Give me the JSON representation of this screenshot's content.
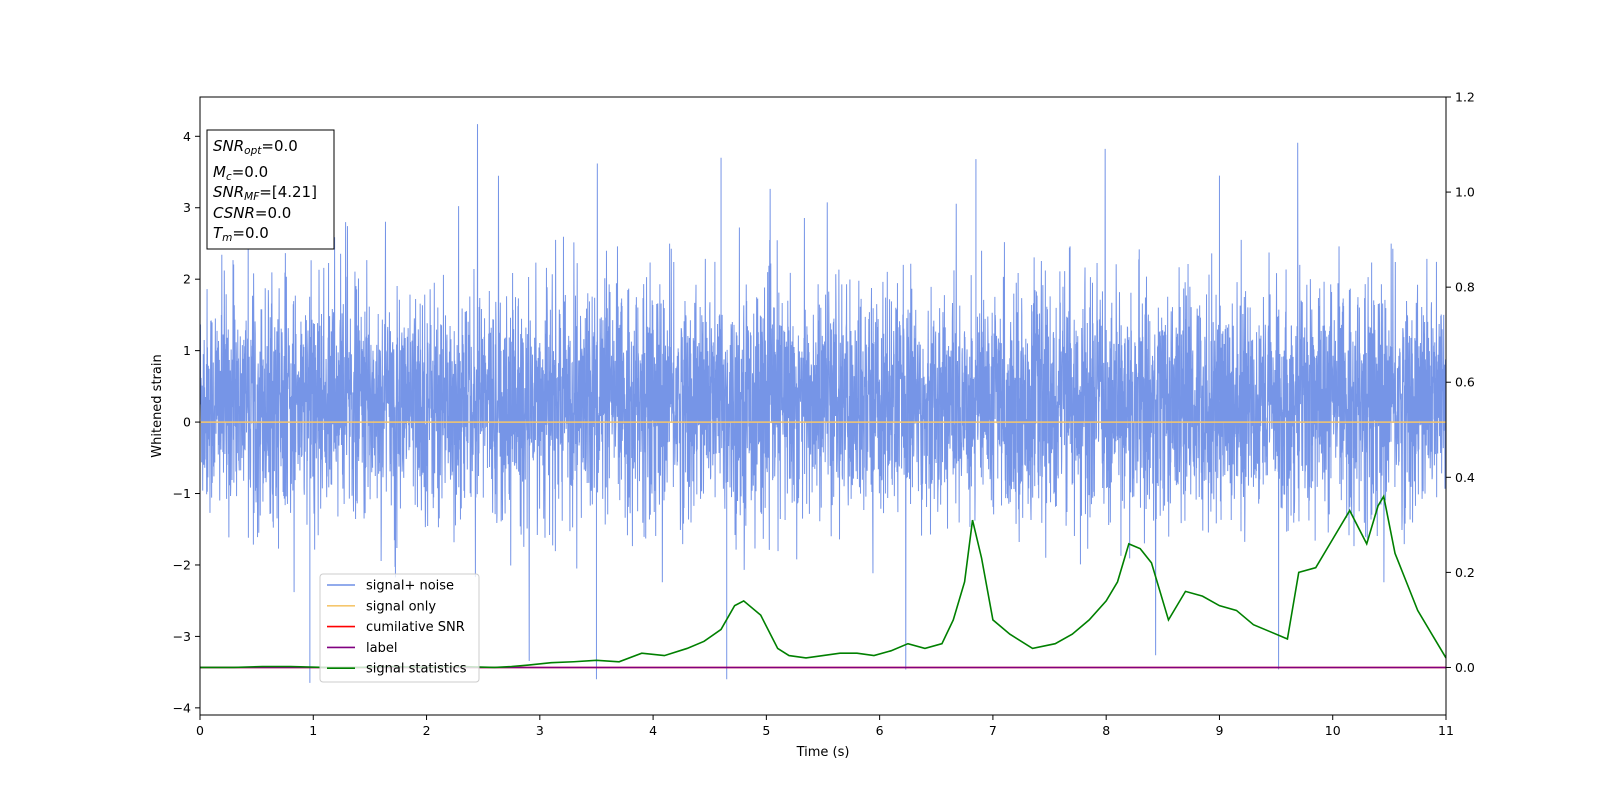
{
  "chart_data": {
    "type": "line",
    "xlabel": "Time (s)",
    "ylabel": "Whitened strain",
    "xlim": [
      0,
      11
    ],
    "ylim": [
      -4.1,
      4.55
    ],
    "y2lim": [
      -0.1,
      1.2
    ],
    "x_ticks": [
      0,
      1,
      2,
      3,
      4,
      5,
      6,
      7,
      8,
      9,
      10,
      11
    ],
    "y_ticks": [
      -4,
      -3,
      -2,
      -1,
      0,
      1,
      2,
      3,
      4
    ],
    "y2_ticks": [
      0.0,
      0.2,
      0.4,
      0.6,
      0.8,
      1.0,
      1.2
    ],
    "legend_position": "lower-left",
    "grid": false,
    "info_box": [
      {
        "name": "SNR",
        "sub": "opt",
        "value": "=0.0"
      },
      {
        "name": "M",
        "sub": "c",
        "value": "=0.0"
      },
      {
        "name": "SNR",
        "sub": "MF",
        "value": "=[4.21]"
      },
      {
        "name": "CSNR",
        "sub": "",
        "value": "=0.0"
      },
      {
        "name": "T",
        "sub": "m",
        "value": "=0.0"
      }
    ],
    "series": [
      {
        "name": "signal+ noise",
        "color": "#6f8fe6",
        "axis": "left",
        "style": "dense noise band, roughly -1.7 to 2.3 with spikes reaching about 4.17 (near t=2.45) and about -3.65 (near t=0.97)"
      },
      {
        "name": "signal only",
        "color": "#f5c66d",
        "axis": "left",
        "x": [
          0,
          11
        ],
        "values": [
          0,
          0
        ]
      },
      {
        "name": "cumilative SNR",
        "color": "#ff0000",
        "axis": "right",
        "x": [
          0,
          11
        ],
        "values": [
          0,
          0
        ]
      },
      {
        "name": "label",
        "color": "#800080",
        "axis": "right",
        "x": [
          0,
          11
        ],
        "values": [
          0,
          0
        ]
      },
      {
        "name": "signal statistics",
        "color": "#008000",
        "axis": "right",
        "x": [
          0,
          0.3,
          0.55,
          0.8,
          1.1,
          1.4,
          1.7,
          2.0,
          2.3,
          2.6,
          2.75,
          2.9,
          3.1,
          3.3,
          3.5,
          3.7,
          3.9,
          4.1,
          4.3,
          4.45,
          4.6,
          4.72,
          4.8,
          4.95,
          5.1,
          5.2,
          5.35,
          5.5,
          5.65,
          5.8,
          5.95,
          6.1,
          6.25,
          6.4,
          6.55,
          6.65,
          6.75,
          6.82,
          6.9,
          7.0,
          7.15,
          7.35,
          7.55,
          7.7,
          7.85,
          8.0,
          8.1,
          8.2,
          8.3,
          8.4,
          8.55,
          8.7,
          8.85,
          9.0,
          9.15,
          9.3,
          9.45,
          9.6,
          9.7,
          9.85,
          10.0,
          10.15,
          10.3,
          10.4,
          10.45,
          10.55,
          10.65,
          10.75,
          10.9,
          11.0
        ],
        "values": [
          0.0,
          0.0,
          0.002,
          0.002,
          0.0,
          0.0,
          0.002,
          0.0,
          0.002,
          0.0,
          0.002,
          0.005,
          0.01,
          0.012,
          0.015,
          0.012,
          0.03,
          0.025,
          0.04,
          0.055,
          0.08,
          0.13,
          0.14,
          0.11,
          0.04,
          0.025,
          0.02,
          0.025,
          0.03,
          0.03,
          0.025,
          0.035,
          0.05,
          0.04,
          0.05,
          0.1,
          0.18,
          0.31,
          0.23,
          0.1,
          0.07,
          0.04,
          0.05,
          0.07,
          0.1,
          0.14,
          0.18,
          0.26,
          0.25,
          0.22,
          0.1,
          0.16,
          0.15,
          0.13,
          0.12,
          0.09,
          0.075,
          0.06,
          0.2,
          0.21,
          0.27,
          0.33,
          0.26,
          0.34,
          0.36,
          0.24,
          0.18,
          0.12,
          0.06,
          0.02
        ]
      }
    ]
  }
}
